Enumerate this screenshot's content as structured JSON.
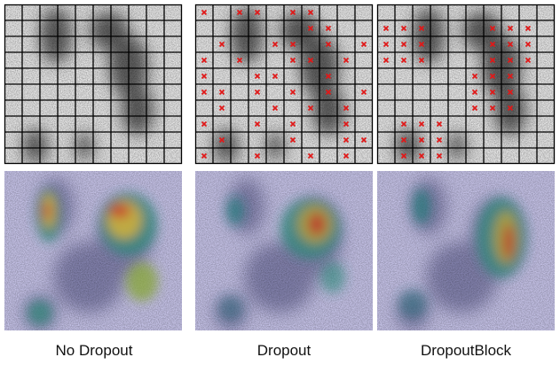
{
  "panels": [
    {
      "caption": "No Dropout"
    },
    {
      "caption": "Dropout"
    },
    {
      "caption": "DropoutBlock"
    }
  ]
}
